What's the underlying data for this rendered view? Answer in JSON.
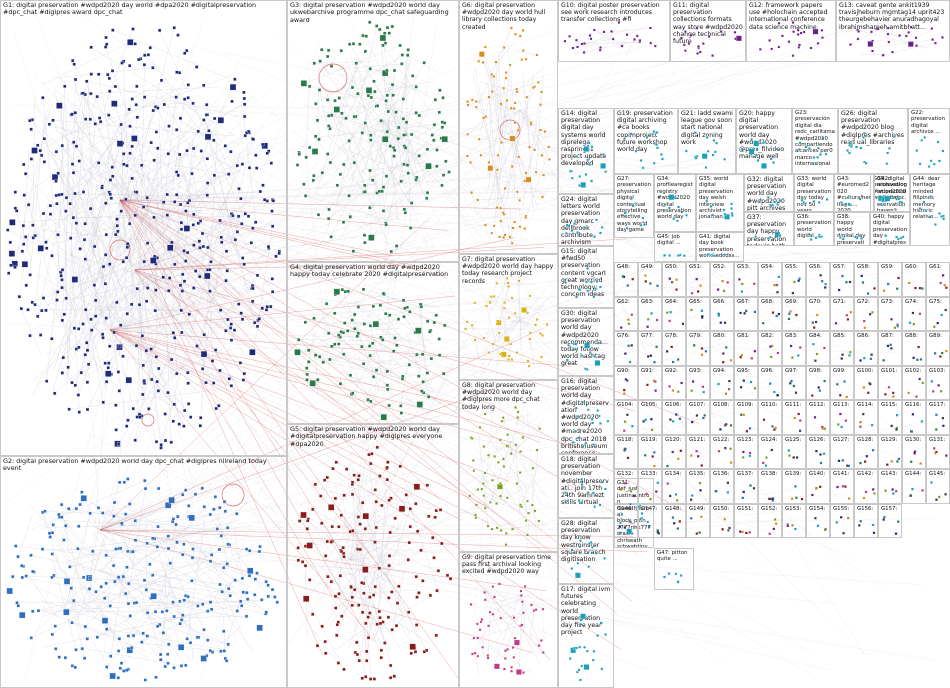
{
  "title": "",
  "colors": {
    "edge": "#b8b8c8",
    "edge_red": "#d23a3a",
    "box_border": "#c9c9c9",
    "palette": [
      "#1f2a7a",
      "#2f6fbf",
      "#2b7a4b",
      "#8a1c1c",
      "#d98c1a",
      "#6a1f8a",
      "#c23b8a",
      "#7aa21f",
      "#1aa0b8",
      "#3a3a3a"
    ]
  },
  "groups": [
    {
      "id": "G1",
      "label": "G1: digital preservation #wdpd2020 day world #dpa2020 #digitalpreservation #dpc_chat #diglpres award dpc_chat",
      "color": "#1f2a7a"
    },
    {
      "id": "G2",
      "label": "G2: digital preservation #wdpd2020 world day dpc_chat #diglpres nllreland today event",
      "color": "#2f6fbf"
    },
    {
      "id": "G3",
      "label": "G3: digital preservation #wdpd2020 world day ukwebarchive programme dpc_chat safeguarding award",
      "color": "#2b7a4b"
    },
    {
      "id": "G4",
      "label": "G4: digital preservation world day #wdpd2020 happy today celebrate 2020 #digitalpreservation",
      "color": "#2b7a4b"
    },
    {
      "id": "G5",
      "label": "G5: digital preservation #wdpd2020 world day #digitalpreservation happy #diglpres everyone #dpa2020",
      "color": "#8a1c1c"
    },
    {
      "id": "G6",
      "label": "G6: digital preservation #wdpd2020 day world hull library collections today created",
      "color": "#d98c1a"
    },
    {
      "id": "G7",
      "label": "G7: digital preservation #wdpd2020 world day happy today research project records",
      "color": "#d9b21a"
    },
    {
      "id": "G8",
      "label": "G8: digital preservation #wdpd2020 world day #diglpres more dpc_chat today long",
      "color": "#7aa21f"
    },
    {
      "id": "G9",
      "label": "G9: digital preservation time pass first archival looking excited #wdpd2020 way",
      "color": "#c23b8a"
    },
    {
      "id": "G10",
      "label": "G10: digital poster preservation see work research introduces transfer collections #fi",
      "color": "#6a1f8a"
    },
    {
      "id": "G11",
      "label": "G11: digital preservation collections formats way store #wdpd2020 change technical future",
      "color": "#6a1f8a"
    },
    {
      "id": "G12",
      "label": "G12: framework papers use #holochain accepted international conference data science machine",
      "color": "#6a1f8a"
    },
    {
      "id": "G13",
      "label": "G13: caveat gente ankit1939 travisjheburn mgmtag14 uprit423 theurgebehavier anuradhagoyal ibrahimshareeh amitbhatt...",
      "color": "#6a1f8a"
    },
    {
      "id": "G14",
      "label": "G14: digital preservation digital day systems world diprelega rasprings1 project update developed",
      "color": "#1aa0b8"
    },
    {
      "id": "G15",
      "label": "G15: digital #fwd50 preservation content vgcarl great worried technology; concern ideas",
      "color": "#1aa0b8"
    },
    {
      "id": "G16",
      "label": "G16: digital preservation world day #digitalpreservation #wdpd2020 world day #madre2020 dpc_chat 2018 britishmuseum conference",
      "color": "#1aa0b8"
    },
    {
      "id": "G17",
      "label": "G17: digital ivm futures celebrating world preservation day five year project",
      "color": "#1aa0b8"
    },
    {
      "id": "G18",
      "label": "G18: digital preservation november #digitalpreservati.. join 17th 24th 9amnezt skills virtual",
      "color": "#1aa0b8"
    },
    {
      "id": "G19",
      "label": "G19: preservation digital archiving #ca books copimproject future workshop world day",
      "color": "#1aa0b8"
    },
    {
      "id": "G20",
      "label": "G20: happy digital preservation world day #wdpd2020 @pres_filvideo manage well",
      "color": "#1aa0b8"
    },
    {
      "id": "G21",
      "label": "G21: ladd swami league gov soon start national digital zoning work",
      "color": "#1aa0b8"
    },
    {
      "id": "G22",
      "label": "G22: preservation digital archivos ...",
      "color": "#1aa0b8"
    },
    {
      "id": "G23",
      "label": "G23: preservación digital día redc_carlitama #wdpd2020 compartiendo alcances per0 marco internacional",
      "color": "#1aa0b8"
    },
    {
      "id": "G24",
      "label": "G24: digital letters world preservation day gmarc dellbrook contribute archivism archive",
      "color": "#1aa0b8"
    },
    {
      "id": "G25",
      "label": "G25: adobe photoshop jpeg xmp scan 1000...",
      "color": "#1aa0b8"
    },
    {
      "id": "G26",
      "label": "G26: digital preservation #wdpd2020 blog #diglpres #archives read ual_libraries",
      "color": "#1aa0b8"
    },
    {
      "id": "G27",
      "label": "G27: preservation physical digital contextual storytelling effective ways world day game",
      "color": "#1aa0b8"
    },
    {
      "id": "G28",
      "label": "G28: digital preservation day know westminster square branch digitisation",
      "color": "#1aa0b8"
    },
    {
      "id": "G29",
      "label": "G29: adobe photoshop jpeg xmp scan aenor video.adaptive covers html xml 1000...",
      "color": "#1aa0b8"
    },
    {
      "id": "G30",
      "label": "G30: digital preservation world day #wdpd2020 recommenda... today follow world hashtag great",
      "color": "#1aa0b8"
    },
    {
      "id": "G31",
      "label": "G31: def_just justinauntron theselfjournal block_pain 2777nhk777 oracle chriseath schwabtiny tron solution",
      "color": "#1aa0b8"
    },
    {
      "id": "G32",
      "label": "G32: digital preservation world day #wdpd2020 pitt archives good pitt...",
      "color": "#1aa0b8"
    },
    {
      "id": "G33",
      "label": "G33: world digital preservation day today nov 50 years",
      "color": "#1aa0b8"
    },
    {
      "id": "G34",
      "label": "G34: profilearegist registry #wdpd2020 digital preservation world day",
      "color": "#1aa0b8"
    },
    {
      "id": "G35",
      "label": "G35: world digital preservation day welsh interview archivist jonathan...",
      "color": "#1aa0b8"
    },
    {
      "id": "G36",
      "label": "G36: preservation world digital...",
      "color": "#1aa0b8"
    },
    {
      "id": "G37",
      "label": "G37: preservation day happy preservation today's both world ...",
      "color": "#1aa0b8"
    },
    {
      "id": "G38",
      "label": "G38: happy world digital day preservation #diglpres #wdpd2020 patterns...",
      "color": "#1aa0b8"
    },
    {
      "id": "G39",
      "label": "G39: digital preservation #wdpd2020 world day ...",
      "color": "#1aa0b8"
    },
    {
      "id": "G40",
      "label": "G40: happy digital preservation day #digitalpreservation",
      "color": "#1aa0b8"
    },
    {
      "id": "G41",
      "label": "G41: digital day book preservation world edcdss...",
      "color": "#1aa0b8"
    },
    {
      "id": "G42",
      "label": "G42: archaeologist medical #digitalpreservation haven't anything...",
      "color": "#1aa0b8"
    },
    {
      "id": "G43",
      "label": "G43: #euromed2020 #culturalheritage ... 2020 november following conference...",
      "color": "#1aa0b8"
    },
    {
      "id": "G44",
      "label": "G44: dear heritage minded filipinos memory historic relative...",
      "color": "#1aa0b8"
    },
    {
      "id": "G45",
      "label": "G45: job digital ...",
      "color": "#1aa0b8"
    },
    {
      "id": "G46",
      "label": "G46: old ...",
      "color": "#1aa0b8"
    },
    {
      "id": "G47",
      "label": "G47: pitton quite ...",
      "color": "#1aa0b8"
    }
  ],
  "small_groups": [
    "G48",
    "G49",
    "G50",
    "G51",
    "G52",
    "G53",
    "G54",
    "G55",
    "G56",
    "G57",
    "G58",
    "G59",
    "G60",
    "G61",
    "G62",
    "G63",
    "G64",
    "G65",
    "G66",
    "G67",
    "G68",
    "G69",
    "G70",
    "G71",
    "G72",
    "G73",
    "G74",
    "G75",
    "G76",
    "G77",
    "G78",
    "G79",
    "G80",
    "G81",
    "G82",
    "G83",
    "G84",
    "G85",
    "G86",
    "G87",
    "G88",
    "G89",
    "G90",
    "G91",
    "G92",
    "G93",
    "G94",
    "G95",
    "G96",
    "G97",
    "G98",
    "G99",
    "G100",
    "G101",
    "G102",
    "G103",
    "G104",
    "G105",
    "G106",
    "G107",
    "G108",
    "G109",
    "G110",
    "G111",
    "G112",
    "G113",
    "G114",
    "G115",
    "G116",
    "G117",
    "G118",
    "G119",
    "G120",
    "G121",
    "G122",
    "G123",
    "G124",
    "G125",
    "G126",
    "G127",
    "G128",
    "G129",
    "G130",
    "G131",
    "G132",
    "G133",
    "G134",
    "G135",
    "G136",
    "G137",
    "G138",
    "G139",
    "G140",
    "G141",
    "G142",
    "G143",
    "G144",
    "G145",
    "G146",
    "G147",
    "G148",
    "G149",
    "G150",
    "G151",
    "G152",
    "G153",
    "G154",
    "G155",
    "G156",
    "G157"
  ]
}
